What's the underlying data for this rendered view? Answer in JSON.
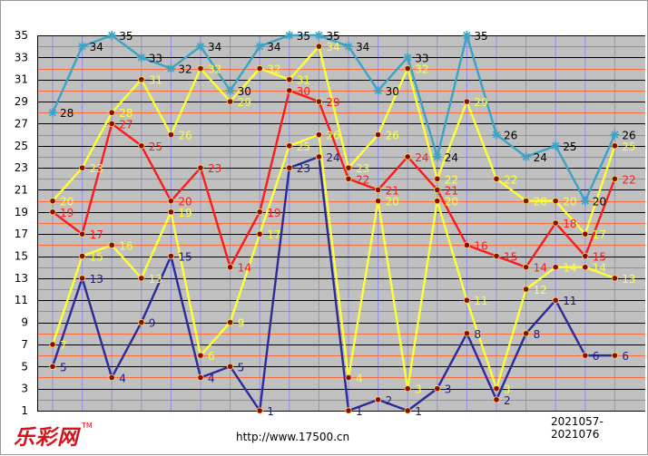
{
  "brand": {
    "name": "乐彩网",
    "tm": "TM"
  },
  "site_url": "http://www.17500.cn",
  "issue_range": "2021057-2021076",
  "colors": {
    "plot_bg": "#c0c0c0",
    "hgrid": "#000000",
    "hgrid_even": "#ff6a3a",
    "vgrid": "#8f8fe6",
    "marker_fill": "#8b0a0a",
    "marker_stroke": "#ffdf55"
  },
  "chart_data": {
    "type": "line",
    "title": "",
    "xlabel": "",
    "ylabel": "",
    "ylim": [
      1,
      35
    ],
    "y_ticks": [
      1,
      3,
      5,
      7,
      9,
      11,
      13,
      15,
      17,
      19,
      21,
      23,
      25,
      27,
      29,
      31,
      33,
      35
    ],
    "x_count": 20,
    "grid": true,
    "series": [
      {
        "color": "#3aa3c6",
        "label_color": "#000000",
        "marker": "star",
        "values": [
          28,
          34,
          35,
          33,
          32,
          34,
          30,
          34,
          35,
          35,
          34,
          30,
          33,
          24,
          35,
          26,
          24,
          25,
          20,
          26
        ]
      },
      {
        "color": "#ffff33",
        "label_color": "#ffff33",
        "marker": "dot",
        "values": [
          20,
          23,
          28,
          31,
          26,
          32,
          29,
          32,
          31,
          34,
          23,
          26,
          32,
          22,
          29,
          22,
          20,
          20,
          17,
          25
        ]
      },
      {
        "color": "#ff1a1a",
        "label_color": "#ff1a1a",
        "marker": "dot",
        "values": [
          19,
          17,
          27,
          25,
          20,
          23,
          14,
          19,
          30,
          29,
          22,
          21,
          24,
          21,
          16,
          15,
          14,
          18,
          15,
          22
        ]
      },
      {
        "color": "#ffff33",
        "label_color": "#ffff33",
        "marker": "dot",
        "values": [
          7,
          15,
          16,
          13,
          19,
          6,
          9,
          17,
          25,
          26,
          4,
          20,
          3,
          20,
          11,
          3,
          12,
          14,
          14,
          13
        ]
      },
      {
        "color": "#2b2b99",
        "label_color": "#1a1a88",
        "marker": "dot",
        "values": [
          5,
          13,
          4,
          9,
          15,
          4,
          5,
          1,
          23,
          24,
          1,
          2,
          1,
          3,
          8,
          2,
          8,
          11,
          6,
          6
        ]
      }
    ]
  }
}
